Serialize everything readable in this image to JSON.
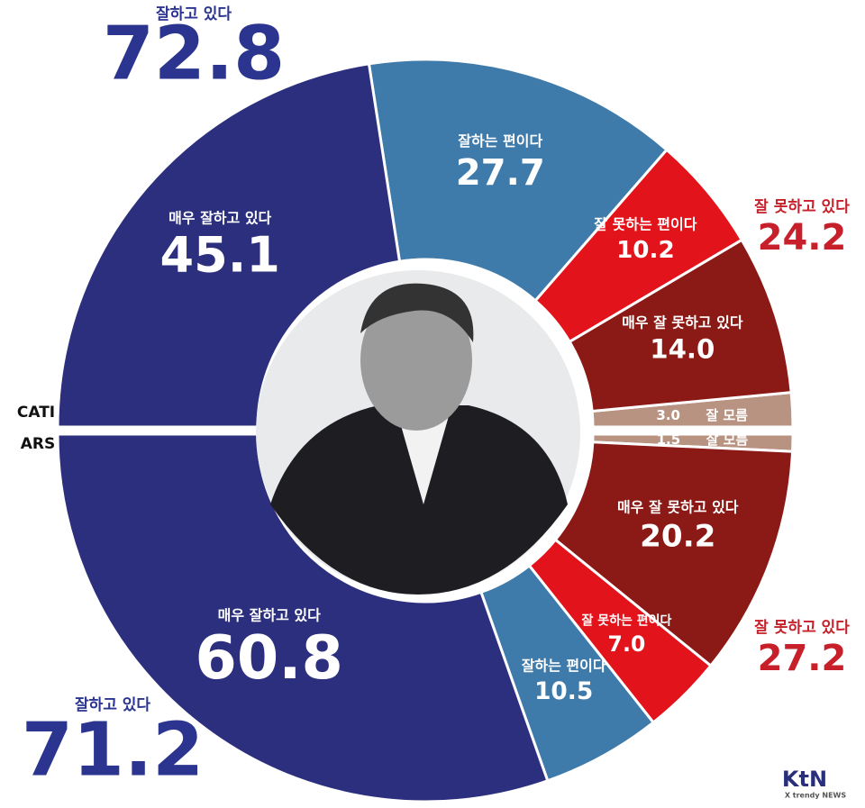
{
  "chart_data": {
    "type": "donut",
    "categories": [
      "매우 잘하고 있다",
      "잘하는 편이다",
      "잘 못하는 편이다",
      "매우 잘 못하고 있다",
      "잘 모름"
    ],
    "colors": [
      "#2b2f7e",
      "#3e7aaa",
      "#e3131b",
      "#8b1a16",
      "#b89382"
    ],
    "series": [
      {
        "name": "CATI",
        "values": [
          45.1,
          27.7,
          10.2,
          14.0,
          3.0
        ],
        "value_labels": [
          "45.1",
          "27.7",
          "10.2",
          "14.0",
          "3.0"
        ]
      },
      {
        "name": "ARS",
        "values": [
          60.8,
          10.5,
          7.0,
          20.2,
          1.5
        ],
        "value_labels": [
          "60.8",
          "10.5",
          "7.0",
          "20.2",
          "1.5"
        ]
      }
    ],
    "summaries": [
      {
        "label": "잘하고 있다",
        "color": "#2b3590",
        "values": [
          72.8,
          71.2
        ]
      },
      {
        "label": "잘 못하고 있다",
        "color": "#c8202a",
        "values": [
          24.2,
          27.2
        ]
      }
    ],
    "logo": {
      "text": "KtN",
      "subtitle": "X trendy NEWS"
    }
  }
}
